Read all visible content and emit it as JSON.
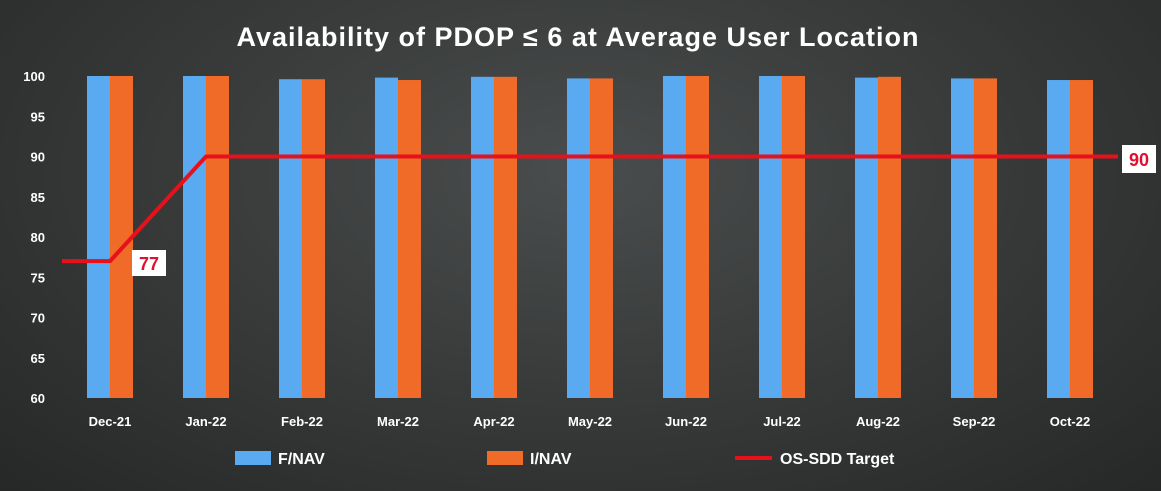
{
  "chart_data": {
    "type": "bar",
    "title": "Availability of PDOP ≤ 6 at Average User Location",
    "xlabel": "",
    "ylabel": "",
    "ylim": [
      60,
      100
    ],
    "yticks": [
      "100",
      "95",
      "90",
      "85",
      "80",
      "75",
      "70",
      "65",
      "60"
    ],
    "categories": [
      "Dec-21",
      "Jan-22",
      "Feb-22",
      "Mar-22",
      "Apr-22",
      "May-22",
      "Jun-22",
      "Jul-22",
      "Aug-22",
      "Sep-22",
      "Oct-22"
    ],
    "series": [
      {
        "name": "F/NAV",
        "color": "#5aaaf2",
        "values": [
          100.0,
          100.0,
          99.6,
          99.8,
          99.9,
          99.7,
          100.0,
          100.0,
          99.8,
          99.7,
          99.5
        ]
      },
      {
        "name": "I/NAV",
        "color": "#f06a28",
        "values": [
          100.0,
          100.0,
          99.6,
          99.5,
          99.9,
          99.7,
          100.0,
          100.0,
          99.9,
          99.7,
          99.5
        ]
      }
    ],
    "target": {
      "name": "OS-SDD Target",
      "color": "#e8101a",
      "values": [
        77,
        90,
        90,
        90,
        90,
        90,
        90,
        90,
        90,
        90,
        90
      ],
      "labels": [
        {
          "text": "77",
          "color": "#e01030"
        },
        {
          "text": "90",
          "color": "#e01030"
        }
      ]
    },
    "legend": [
      "F/NAV",
      "I/NAV",
      "OS-SDD Target"
    ],
    "legend_position": "bottom",
    "grid": false
  }
}
